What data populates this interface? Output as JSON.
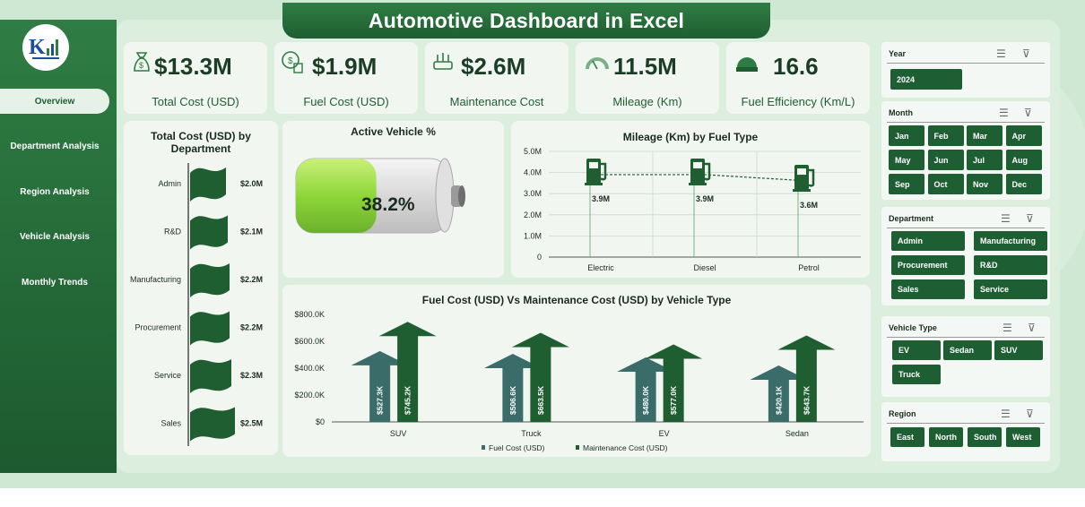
{
  "title": "Automotive Dashboard in Excel",
  "nav": [
    {
      "label": "Overview",
      "active": true
    },
    {
      "label": "Department Analysis",
      "active": false
    },
    {
      "label": "Region Analysis",
      "active": false
    },
    {
      "label": "Vehicle Analysis",
      "active": false
    },
    {
      "label": "Monthly Trends",
      "active": false
    }
  ],
  "kpis": [
    {
      "value": "$13.3M",
      "label": "Total Cost (USD)",
      "icon": "money-bag-icon"
    },
    {
      "value": "$1.9M",
      "label": "Fuel Cost (USD)",
      "icon": "fuel-money-icon"
    },
    {
      "value": "$2.6M",
      "label": "Maintenance Cost",
      "icon": "maintenance-icon"
    },
    {
      "value": "11.5M",
      "label": "Mileage (Km)",
      "icon": "gauge-icon"
    },
    {
      "value": "16.6",
      "label": "Fuel Efficiency (Km/L)",
      "icon": "efficiency-icon"
    }
  ],
  "dept_chart": {
    "title": "Total Cost (USD) by Department",
    "chart_data": {
      "type": "bar",
      "categories": [
        "Admin",
        "R&D",
        "Manufacturing",
        "Procurement",
        "Service",
        "Sales"
      ],
      "values": [
        2.0,
        2.1,
        2.2,
        2.2,
        2.3,
        2.5
      ],
      "labels": [
        "$2.0M",
        "$2.1M",
        "$2.2M",
        "$2.2M",
        "$2.3M",
        "$2.5M"
      ],
      "unit": "M USD"
    }
  },
  "active_vehicle": {
    "title": "Active Vehicle %",
    "value": "38.2%",
    "fraction": 0.382
  },
  "mileage_chart": {
    "title": "Mileage (Km) by Fuel Type",
    "chart_data": {
      "type": "line",
      "categories": [
        "Electric",
        "Diesel",
        "Petrol"
      ],
      "values": [
        3.9,
        3.9,
        3.6
      ],
      "labels": [
        "3.9M",
        "3.9M",
        "3.6M"
      ],
      "yticks": [
        "0",
        "1.0M",
        "2.0M",
        "3.0M",
        "4.0M",
        "5.0M"
      ],
      "ylim": [
        0,
        5
      ]
    }
  },
  "cost_chart": {
    "title": "Fuel Cost (USD) Vs Maintenance Cost (USD) by Vehicle Type",
    "chart_data": {
      "type": "bar",
      "categories": [
        "SUV",
        "Truck",
        "EV",
        "Sedan"
      ],
      "series": [
        {
          "name": "Fuel Cost (USD)",
          "values": [
            527.3,
            506.6,
            480.0,
            420.1
          ],
          "labels": [
            "$527.3K",
            "$506.6K",
            "$480.0K",
            "$420.1K"
          ],
          "color": "#3a6d6a"
        },
        {
          "name": "Maintenance Cost (USD)",
          "values": [
            745.2,
            663.5,
            577.0,
            643.7
          ],
          "labels": [
            "$745.2K",
            "$663.5K",
            "$577.0K",
            "$643.7K"
          ],
          "color": "#1f5e31"
        }
      ],
      "yticks": [
        "$0",
        "$200.0K",
        "$400.0K",
        "$600.0K",
        "$800.0K"
      ],
      "ylim": [
        0,
        800
      ]
    }
  },
  "slicers": {
    "year": {
      "title": "Year",
      "items": [
        "2024"
      ]
    },
    "month": {
      "title": "Month",
      "items": [
        "Jan",
        "Feb",
        "Mar",
        "Apr",
        "May",
        "Jun",
        "Jul",
        "Aug",
        "Sep",
        "Oct",
        "Nov",
        "Dec"
      ]
    },
    "department": {
      "title": "Department",
      "items": [
        "Admin",
        "Manufacturing",
        "Procurement",
        "R&D",
        "Sales",
        "Service"
      ]
    },
    "vehicle_type": {
      "title": "Vehicle Type",
      "items": [
        "EV",
        "Sedan",
        "SUV",
        "Truck"
      ]
    },
    "region": {
      "title": "Region",
      "items": [
        "East",
        "North",
        "South",
        "West"
      ]
    }
  },
  "colors": {
    "primary": "#1f5e31",
    "accent": "#2f7d44",
    "teal": "#3a6d6a",
    "background": "#cfe8d3"
  }
}
